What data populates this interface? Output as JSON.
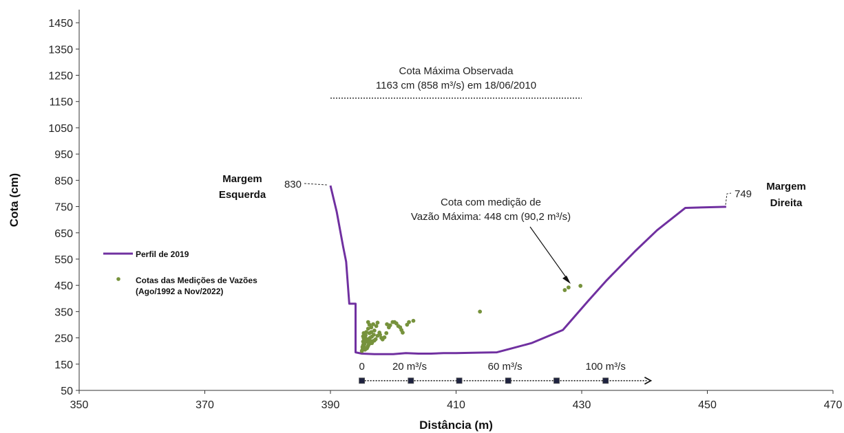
{
  "chart_data": {
    "type": "line",
    "xlabel": "Distância (m)",
    "ylabel": "Cota (cm)",
    "xlim": [
      350,
      470
    ],
    "ylim": [
      50,
      1500
    ],
    "xticks": [
      350,
      370,
      390,
      410,
      430,
      450,
      470
    ],
    "yticks": [
      50,
      150,
      250,
      350,
      450,
      550,
      650,
      750,
      850,
      950,
      1050,
      1150,
      1250,
      1350,
      1450
    ],
    "grid": false,
    "legend_position": "left",
    "series": [
      {
        "name": "Perfil de 2019",
        "type": "line",
        "color": "#7030A0",
        "x": [
          390,
          391,
          392,
          392.5,
          393,
          394,
          394,
          395,
          397,
          400,
          402,
          404,
          406,
          408,
          410,
          412,
          414,
          416.5,
          422,
          427,
          431,
          434,
          438.5,
          442,
          446.5,
          453
        ],
        "y": [
          830,
          730,
          600,
          540,
          380,
          380,
          195,
          190,
          188,
          188,
          192,
          190,
          190,
          192,
          192,
          193,
          194,
          195,
          230,
          280,
          390,
          470,
          580,
          660,
          745,
          749
        ]
      },
      {
        "name": "Cotas das Medições de Vazões (Ago/1992 a Nov/2022)",
        "type": "scatter",
        "color": "#76923C",
        "points": [
          [
            395.0,
            200
          ],
          [
            395.1,
            205
          ],
          [
            395.2,
            210
          ],
          [
            395.1,
            215
          ],
          [
            395.3,
            218
          ],
          [
            395.2,
            222
          ],
          [
            395.4,
            226
          ],
          [
            395.3,
            230
          ],
          [
            395.5,
            232
          ],
          [
            395.2,
            236
          ],
          [
            395.6,
            240
          ],
          [
            395.4,
            244
          ],
          [
            395.3,
            248
          ],
          [
            395.5,
            252
          ],
          [
            395.2,
            256
          ],
          [
            395.6,
            260
          ],
          [
            395.4,
            264
          ],
          [
            395.3,
            268
          ],
          [
            395.7,
            272
          ],
          [
            395.5,
            205
          ],
          [
            395.8,
            210
          ],
          [
            395.9,
            215
          ],
          [
            396.0,
            220
          ],
          [
            396.1,
            225
          ],
          [
            396.2,
            228
          ],
          [
            396.0,
            235
          ],
          [
            396.3,
            232
          ],
          [
            396.1,
            240
          ],
          [
            395.9,
            245
          ],
          [
            396.4,
            230
          ],
          [
            396.5,
            236
          ],
          [
            396.6,
            230
          ],
          [
            396.8,
            238
          ],
          [
            397.0,
            240
          ],
          [
            397.2,
            245
          ],
          [
            396.3,
            250
          ],
          [
            396.6,
            255
          ],
          [
            396.9,
            262
          ],
          [
            396.2,
            268
          ],
          [
            396.5,
            272
          ],
          [
            396.0,
            285
          ],
          [
            396.5,
            290
          ],
          [
            396.2,
            300
          ],
          [
            396.0,
            310
          ],
          [
            396.8,
            302
          ],
          [
            397.3,
            295
          ],
          [
            397.5,
            308
          ],
          [
            397.0,
            278
          ],
          [
            397.8,
            270
          ],
          [
            397.5,
            258
          ],
          [
            397.9,
            262
          ],
          [
            398.1,
            250
          ],
          [
            398.3,
            244
          ],
          [
            398.6,
            252
          ],
          [
            398.9,
            268
          ],
          [
            399.0,
            302
          ],
          [
            399.3,
            290
          ],
          [
            399.5,
            298
          ],
          [
            399.9,
            310
          ],
          [
            400.2,
            310
          ],
          [
            400.5,
            305
          ],
          [
            400.8,
            295
          ],
          [
            401.1,
            290
          ],
          [
            401.3,
            280
          ],
          [
            401.5,
            270
          ],
          [
            402.2,
            300
          ],
          [
            402.5,
            310
          ],
          [
            403.2,
            315
          ],
          [
            413.8,
            350
          ],
          [
            427.3,
            432
          ],
          [
            427.9,
            442
          ],
          [
            429.8,
            448
          ]
        ]
      }
    ],
    "annotations": {
      "cota_maxima_line1": "Cota Máxima Observada",
      "cota_maxima_line2": "1163 cm (858 m³/s) em 18/06/2010",
      "cota_maxima_value": 1163,
      "cota_maxima_x": [
        390,
        430
      ],
      "vazao_max_line1": "Cota com medição de",
      "vazao_max_line2": "Vazão Máxima: 448 cm (90,2 m³/s)",
      "margem_esquerda_line1": "Margem",
      "margem_esquerda_line2": "Esquerda",
      "margem_direita_line1": "Margem",
      "margem_direita_line2": "Direita",
      "label_830": "830",
      "label_749": "749"
    },
    "flow_scale": {
      "labels": [
        "0",
        "20 m³/s",
        "60 m³/s",
        "100 m³/s"
      ],
      "y": 87,
      "x": [
        395,
        402.8,
        410.5,
        418.3,
        426,
        433.8
      ],
      "arrow_end": 441
    }
  }
}
